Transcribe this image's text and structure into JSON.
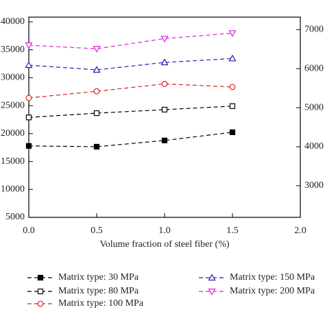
{
  "chart_data": {
    "type": "line",
    "x_label": "Volume fraction of steel fiber (%)",
    "x": [
      0,
      0.5,
      1,
      1.5,
      2
    ],
    "xlim": [
      0,
      2
    ],
    "xticks": [
      {
        "value": 0,
        "label": "0.0"
      },
      {
        "value": 0.5,
        "label": "0.5"
      },
      {
        "value": 1,
        "label": "1.0"
      },
      {
        "value": 1.5,
        "label": "1.5"
      },
      {
        "value": 2,
        "label": "2.0"
      }
    ],
    "ylim": [
      5000,
      40850
    ],
    "yticks": [
      5000,
      10000,
      15000,
      20000,
      25000,
      30000,
      35000,
      40000
    ],
    "y2lim": [
      2190,
      7320
    ],
    "y2ticks": [
      3000,
      4000,
      5000,
      6000,
      7000
    ],
    "series": [
      {
        "name": "Matrix type: 30 MPa",
        "color": "#000000",
        "marker": "square-filled",
        "axis": "y2",
        "values": [
          4020,
          4000,
          4160,
          4370,
          null
        ]
      },
      {
        "name": "Matrix type: 80 MPa",
        "color": "#000000",
        "marker": "square-open",
        "axis": "y2",
        "values": [
          4750,
          4860,
          4950,
          5040,
          null
        ]
      },
      {
        "name": "Matrix type: 100 MPa",
        "color": "#d62020",
        "marker": "circle-open",
        "axis": "y2",
        "values": [
          5250,
          5420,
          5610,
          5530,
          null
        ]
      },
      {
        "name": "Matrix type: 150 MPa",
        "color": "#2020b0",
        "marker": "triangle-open",
        "axis": "y2",
        "values": [
          6090,
          5970,
          6160,
          6260,
          null
        ]
      },
      {
        "name": "Matrix type: 200 MPa",
        "color": "#e020e0",
        "marker": "triangle-down-open",
        "axis": "y2",
        "values": [
          6600,
          6510,
          6770,
          6910,
          null
        ]
      }
    ]
  }
}
